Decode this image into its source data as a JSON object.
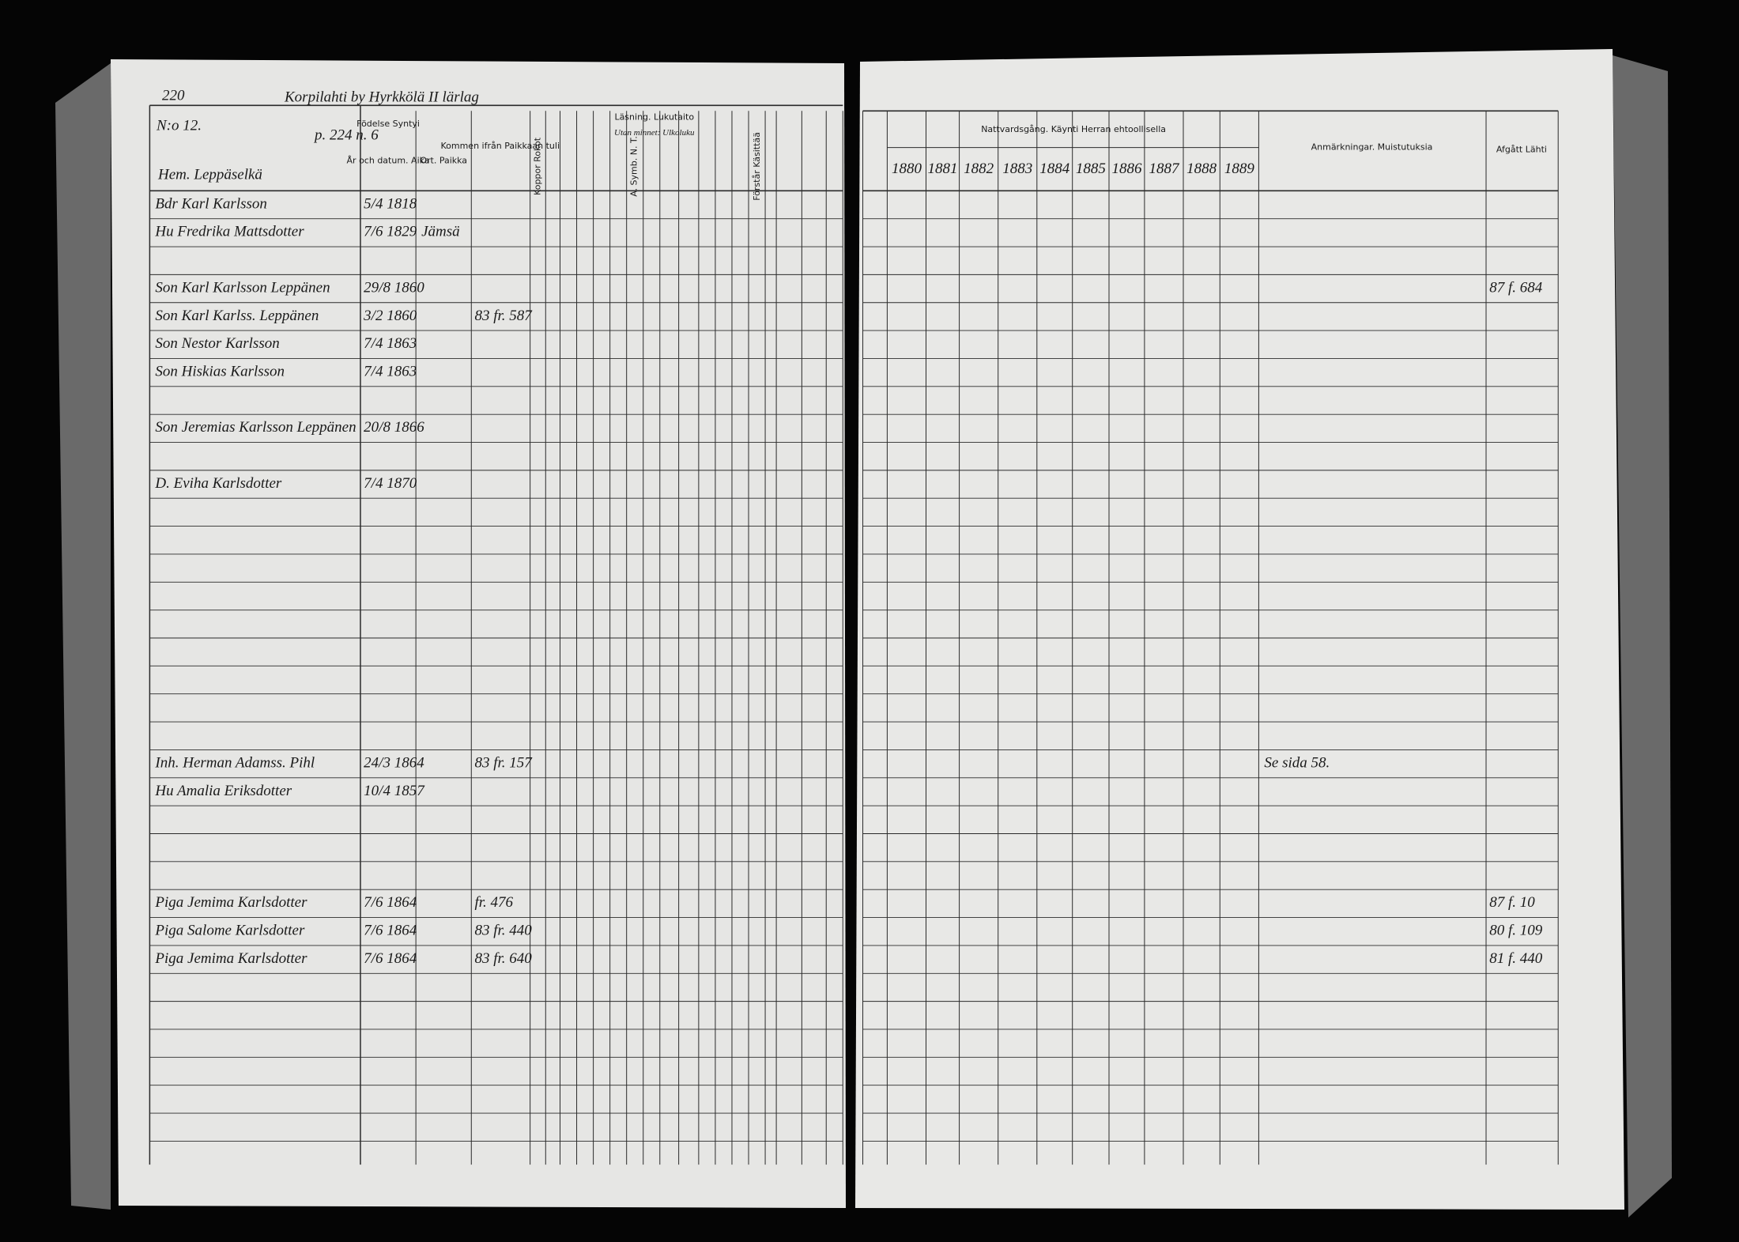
{
  "header": {
    "page_number": "220",
    "title": "Korpilahti by Hyrkkölä II lärlag",
    "ref": "p. 224 n. 6",
    "number": "N:o 12."
  },
  "left_columns": {
    "birth": "Födelse Syntyi",
    "date": "År och datum. Aika",
    "place": "Ort. Paikka",
    "from": "Kommen ifrån Paikkaan tuli",
    "pox": "Koppor Rokot",
    "reading": "Läsning. Lukutaito",
    "memory": "Utan minnet: Ulkoluku",
    "symb": "A. Symb. N. T.",
    "understands": "Förstår Käsittää"
  },
  "right_columns": {
    "communion": "Nattvardsgång. Käynti Herran ehtoollisella",
    "years": [
      "1880",
      "1881",
      "1882",
      "1883",
      "1884",
      "1885",
      "1886",
      "1887",
      "1888",
      "1889"
    ],
    "remarks": "Anmärkningar. Muistutuksia",
    "departed": "Afgått Lähti"
  },
  "section": "Hem. Leppäselkä",
  "rows": [
    {
      "name": "Bdr Karl Karlsson",
      "date": "5/4 1818",
      "line": 1
    },
    {
      "name": "Hu Fredrika Mattsdotter",
      "date": "7/6 1829",
      "place": "Jämsä",
      "line": 2
    },
    {
      "name": "Son Karl Karlsson Leppänen",
      "date": "29/8 1860",
      "departed": "87 f. 684",
      "line": 4
    },
    {
      "name": "Son Karl Karlss. Leppänen",
      "date": "3/2 1860",
      "from": "83 fr. 587",
      "line": 5
    },
    {
      "name": "Son Nestor Karlsson",
      "date": "7/4 1863",
      "line": 6
    },
    {
      "name": "Son Hiskias Karlsson",
      "date": "7/4 1863",
      "line": 7
    },
    {
      "name": "Son Jeremias Karlsson Leppänen",
      "date": "20/8 1866",
      "line": 9
    },
    {
      "name": "D. Eviha Karlsdotter",
      "date": "7/4 1870",
      "line": 11
    },
    {
      "name": "Inh. Herman Adamss. Pihl",
      "date": "24/3 1864",
      "from": "83 fr. 157",
      "remark": "Se sida 58.",
      "line": 21
    },
    {
      "name": "Hu Amalia Eriksdotter",
      "date": "10/4 1857",
      "line": 22
    },
    {
      "name": "Piga Jemima Karlsdotter",
      "date": "7/6 1864",
      "from": "fr. 476",
      "departed": "87 f. 10",
      "line": 26
    },
    {
      "name": "Piga Salome Karlsdotter",
      "date": "7/6 1864",
      "from": "83 fr. 440",
      "departed": "80 f. 109",
      "line": 27
    },
    {
      "name": "Piga Jemima Karlsdotter",
      "date": "7/6 1864",
      "from": "83 fr. 640",
      "departed": "81 f. 440",
      "line": 28
    }
  ]
}
